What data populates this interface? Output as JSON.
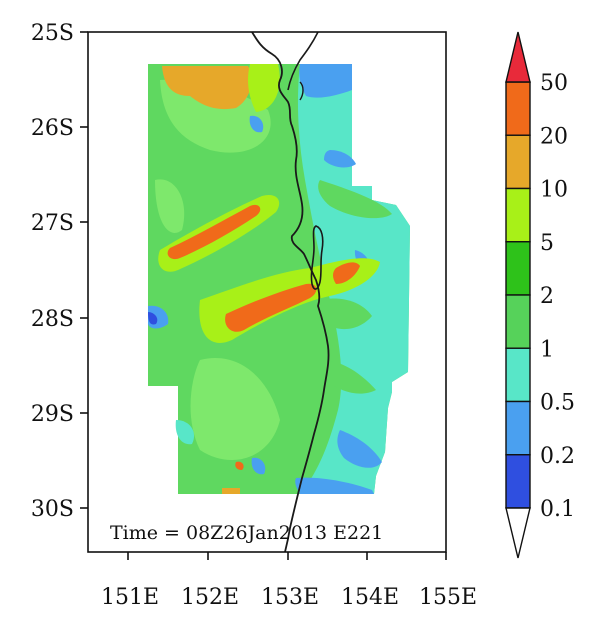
{
  "map": {
    "time_label": "Time = 08Z26Jan2013 E221",
    "lat_ticks": [
      "25S",
      "26S",
      "27S",
      "28S",
      "29S",
      "30S"
    ],
    "lon_ticks": [
      "151E",
      "152E",
      "153E",
      "154E",
      "155E"
    ],
    "lat_range": [
      -30.5,
      -25
    ],
    "lon_range": [
      150.5,
      155
    ]
  },
  "colorbar": {
    "levels": [
      "0.1",
      "0.2",
      "0.5",
      "1",
      "2",
      "5",
      "10",
      "20",
      "50"
    ],
    "colors": [
      "#ffffff",
      "#2f4fe0",
      "#4aa0f0",
      "#58e6c8",
      "#56d25a",
      "#2ec21a",
      "#a8f018",
      "#e6a82a",
      "#f06a1a",
      "#e82a3a"
    ]
  },
  "colors": {
    "ocean_blue": "#4aa0f0",
    "land_green": "#5fd860",
    "coastline": "#1a1a1a"
  }
}
